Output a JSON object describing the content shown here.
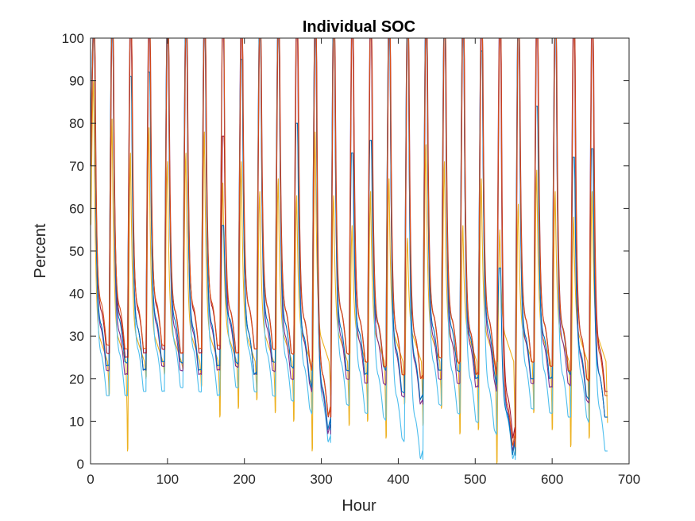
{
  "chart_data": {
    "type": "line",
    "title": "Individual SOC",
    "xlabel": "Hour",
    "ylabel": "Percent",
    "xlim": [
      0,
      700
    ],
    "ylim": [
      0,
      100
    ],
    "xticks": [
      "0",
      "100",
      "200",
      "300",
      "400",
      "500",
      "600",
      "700"
    ],
    "yticks": [
      "0",
      "10",
      "20",
      "30",
      "40",
      "50",
      "60",
      "70",
      "80",
      "90",
      "100"
    ],
    "grid": false,
    "legend": "none",
    "cycle_hours": 24,
    "hours": [
      0,
      672
    ],
    "x": [
      12,
      36,
      60,
      84,
      108,
      132,
      156,
      180,
      204,
      228,
      252,
      276,
      300,
      324,
      348,
      372,
      396,
      420,
      444,
      468,
      492,
      516,
      540,
      564,
      588,
      612,
      636,
      660
    ],
    "series": [
      {
        "color": "#0072BD",
        "peaks": [
          100,
          100,
          91,
          92,
          100,
          100,
          100,
          56,
          95,
          100,
          100,
          80,
          100,
          100,
          73,
          76,
          100,
          100,
          100,
          100,
          100,
          97,
          46,
          100,
          84,
          100,
          72,
          74
        ],
        "troughs": [
          23,
          24,
          22,
          24,
          24,
          22,
          23,
          24,
          21,
          24,
          23,
          20,
          8,
          22,
          21,
          23,
          17,
          15,
          22,
          22,
          20,
          22,
          2,
          20,
          20,
          22,
          16,
          11
        ]
      },
      {
        "color": "#D95319",
        "peaks": [
          100,
          100,
          100,
          100,
          100,
          100,
          100,
          100,
          100,
          100,
          100,
          100,
          100,
          100,
          100,
          100,
          100,
          100,
          100,
          100,
          100,
          100,
          100,
          100,
          100,
          100,
          100,
          100
        ],
        "troughs": [
          28,
          27,
          27,
          28,
          26,
          27,
          28,
          26,
          27,
          27,
          26,
          24,
          11,
          26,
          24,
          23,
          21,
          20,
          25,
          24,
          21,
          24,
          4,
          24,
          23,
          22,
          20,
          16
        ]
      },
      {
        "color": "#EDB120",
        "peaks": [
          90,
          81,
          73,
          79,
          71,
          73,
          78,
          66,
          71,
          64,
          67,
          63,
          78,
          63,
          56,
          64,
          67,
          53,
          75,
          71,
          56,
          67,
          55,
          61,
          69,
          64,
          58,
          64
        ]
      },
      {
        "color": "#7E2F8E",
        "peaks": [
          100,
          100,
          100,
          100,
          100,
          100,
          100,
          100,
          100,
          100,
          100,
          100,
          100,
          100,
          100,
          100,
          100,
          100,
          100,
          100,
          100,
          100,
          100,
          100,
          100,
          100,
          100,
          100
        ],
        "troughs": [
          22,
          21,
          22,
          23,
          22,
          21,
          22,
          23,
          21,
          22,
          20,
          19,
          7,
          20,
          19,
          19,
          16,
          14,
          20,
          19,
          18,
          20,
          3,
          19,
          18,
          19,
          15,
          11
        ]
      },
      {
        "color": "#4DBEEE",
        "peaks": [
          100,
          100,
          100,
          100,
          100,
          100,
          100,
          100,
          100,
          100,
          100,
          100,
          100,
          100,
          100,
          100,
          100,
          100,
          100,
          100,
          100,
          100,
          100,
          100,
          100,
          100,
          100,
          100
        ],
        "troughs": [
          16,
          16,
          17,
          17,
          18,
          17,
          16,
          18,
          17,
          16,
          15,
          13,
          5,
          14,
          12,
          11,
          6,
          1,
          14,
          12,
          10,
          8,
          1,
          13,
          12,
          11,
          11,
          3
        ]
      },
      {
        "color": "#A2142F",
        "peaks": [
          100,
          100,
          100,
          100,
          100,
          100,
          100,
          77,
          100,
          100,
          100,
          100,
          100,
          100,
          100,
          100,
          100,
          100,
          100,
          100,
          100,
          100,
          100,
          100,
          100,
          100,
          100,
          100
        ],
        "troughs": [
          26,
          25,
          26,
          27,
          26,
          26,
          27,
          26,
          27,
          27,
          26,
          24,
          11,
          26,
          24,
          23,
          21,
          20,
          25,
          24,
          21,
          24,
          6,
          24,
          23,
          22,
          20,
          17
        ]
      }
    ]
  }
}
